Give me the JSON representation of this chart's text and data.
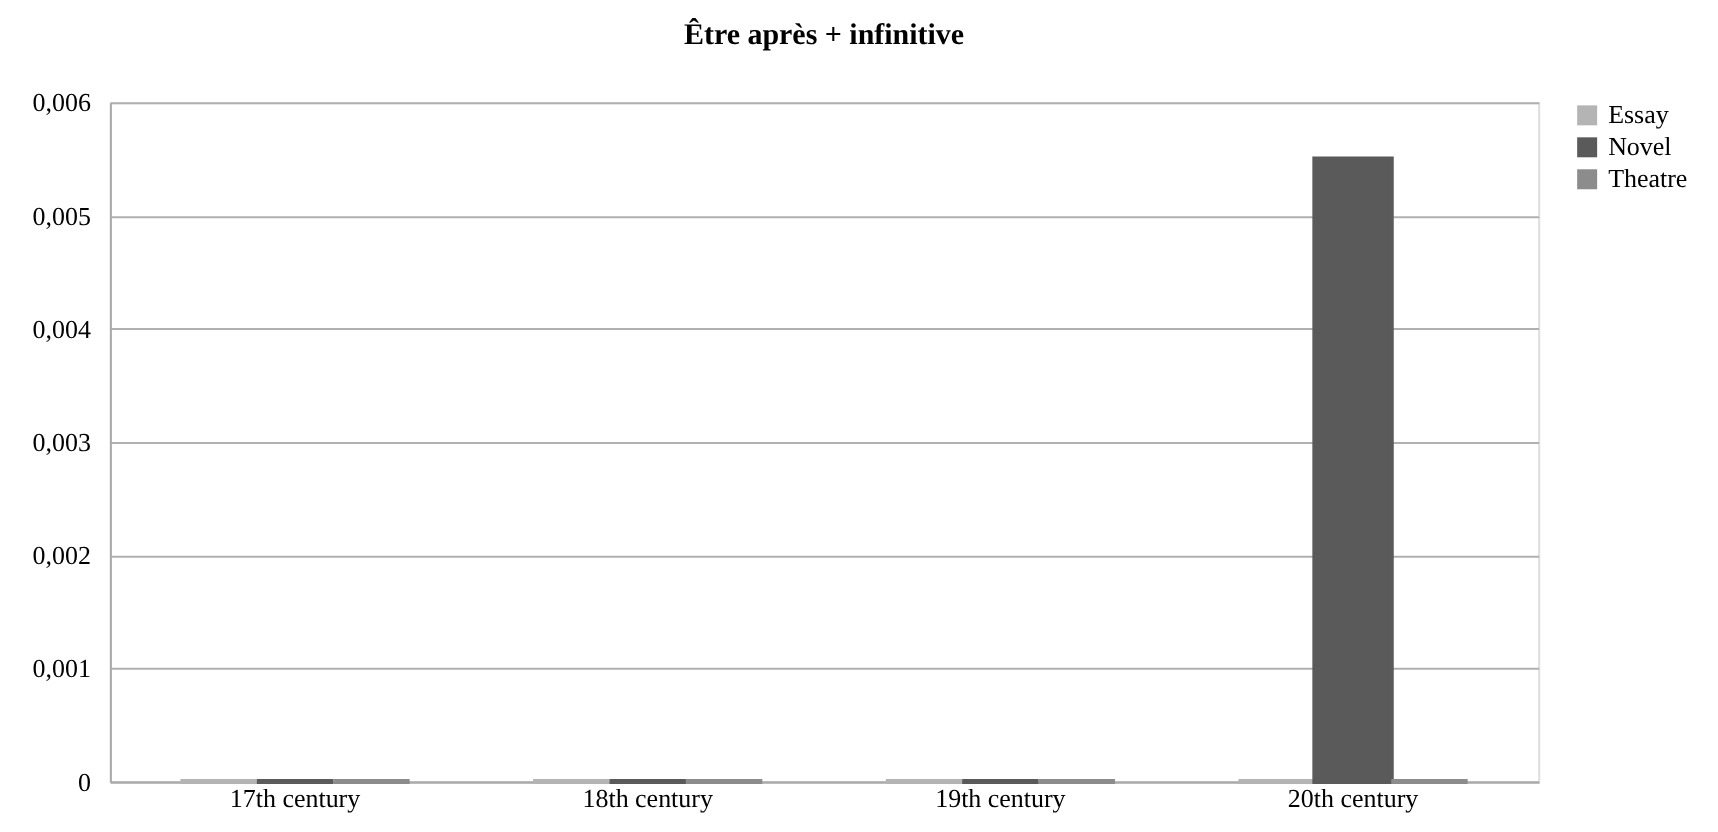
{
  "chart_data": {
    "type": "bar",
    "title": "Être après + infinitive",
    "categories": [
      "17th century",
      "18th century",
      "19th century",
      "20th century"
    ],
    "series": [
      {
        "name": "Essay",
        "color": "#b4b4b4",
        "values": [
          0,
          0,
          0,
          0
        ]
      },
      {
        "name": "Novel",
        "color": "#5a5a5a",
        "values": [
          0,
          0,
          0,
          0.0055
        ]
      },
      {
        "name": "Theatre",
        "color": "#8c8c8c",
        "values": [
          0,
          0,
          0,
          0
        ]
      }
    ],
    "ylim": [
      0,
      0.006
    ],
    "yticks": [
      0,
      {
        "value": 0.001,
        "label": "0,001"
      },
      {
        "value": 0.002,
        "label": "0,002"
      },
      {
        "value": 0.003,
        "label": "0,003"
      },
      {
        "value": 0.004,
        "label": "0,004"
      },
      {
        "value": 0.005,
        "label": "0,005"
      },
      {
        "value": 0.006,
        "label": "0,006"
      }
    ],
    "grid": "y",
    "legend": "right"
  }
}
